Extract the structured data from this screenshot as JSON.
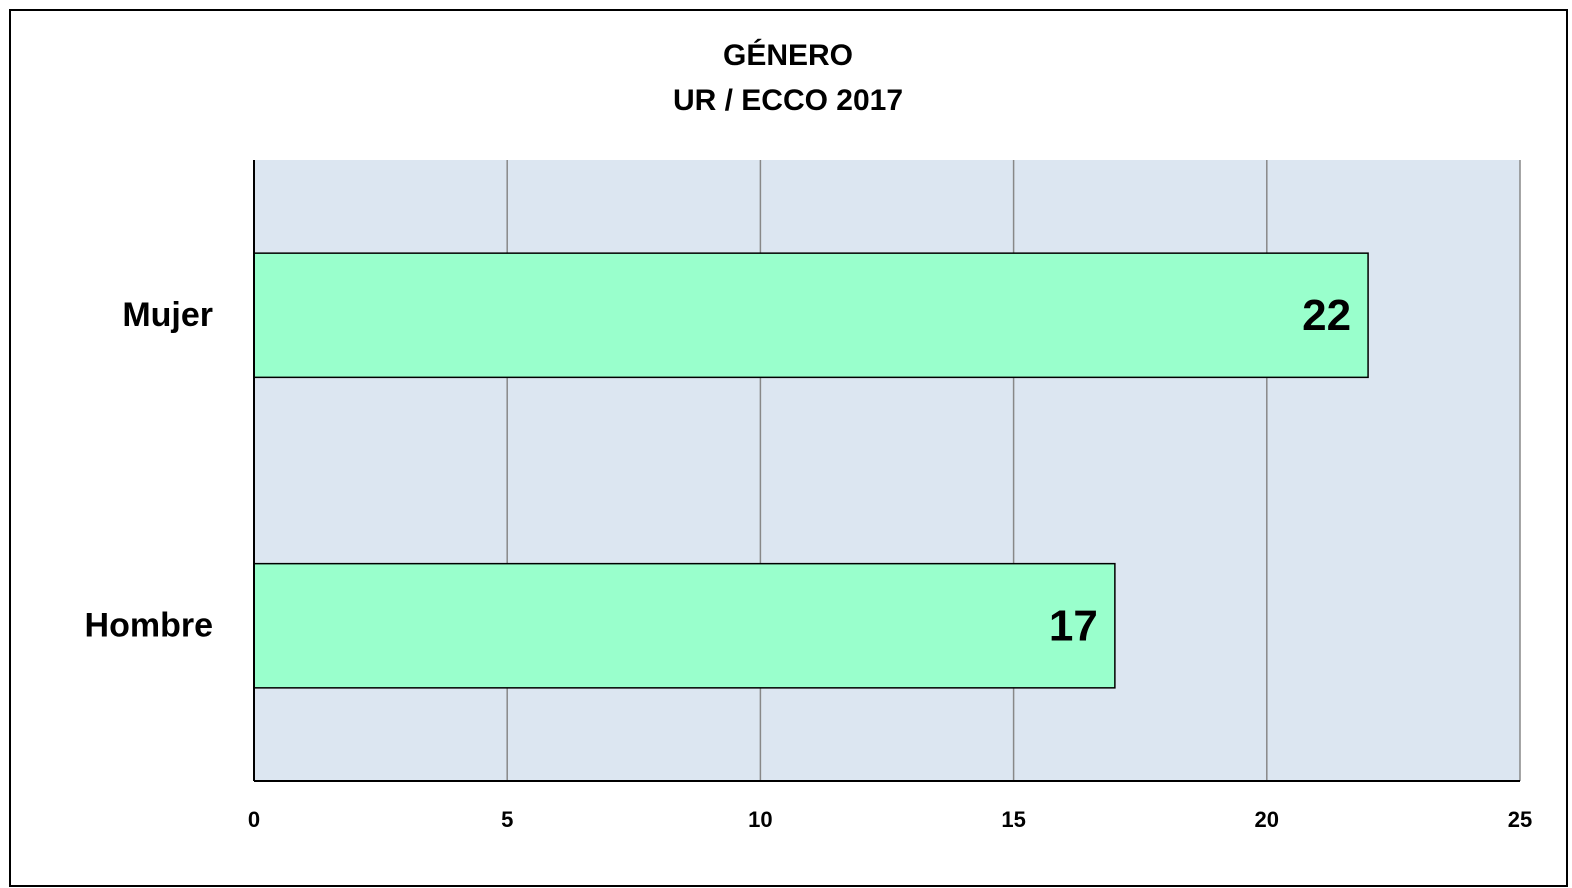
{
  "chart_data": {
    "type": "hbar",
    "title": "GÉNERO",
    "subtitle": "UR / ECCO 2017",
    "categories": [
      "Mujer",
      "Hombre"
    ],
    "values": [
      22,
      17
    ],
    "color": "#99ffcc",
    "xlim": [
      0,
      25
    ],
    "xticks": [
      0,
      5,
      10,
      15,
      20,
      25
    ],
    "grid": true
  }
}
